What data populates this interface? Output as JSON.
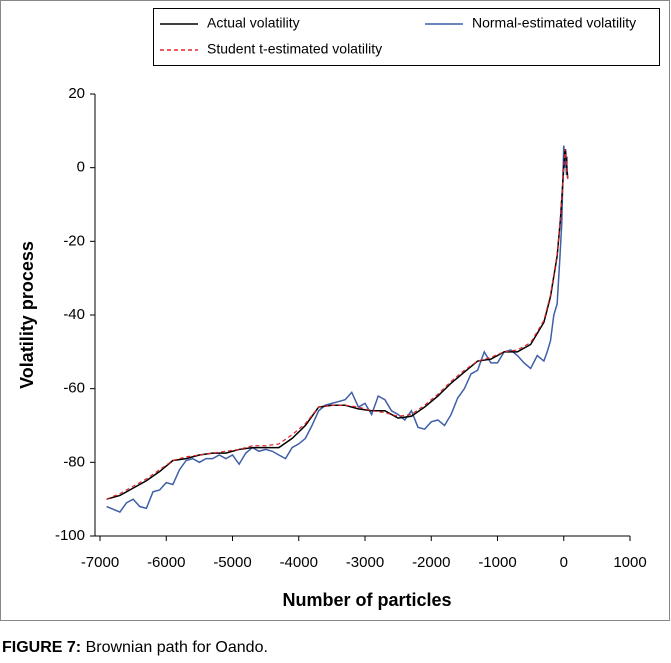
{
  "chart_data": {
    "type": "line",
    "xlabel": "Number of particles",
    "ylabel": "Volatility process",
    "caption": {
      "label": "FIGURE 7:",
      "text": "Brownian path for Oando."
    },
    "xlim": [
      -7000,
      1000
    ],
    "xticks": [
      -7000,
      -6000,
      -5000,
      -4000,
      -3000,
      -2000,
      -1000,
      0,
      1000
    ],
    "ylim": [
      -100,
      20
    ],
    "yticks": [
      -100,
      -80,
      -60,
      -40,
      -20,
      0,
      20
    ],
    "grid": false,
    "series": [
      {
        "name": "Actual volatility",
        "color": "#000000",
        "dash": "solid",
        "x": [
          -6900,
          -6700,
          -6500,
          -6300,
          -6100,
          -5900,
          -5700,
          -5500,
          -5300,
          -5100,
          -4900,
          -4700,
          -4500,
          -4300,
          -4100,
          -3900,
          -3700,
          -3500,
          -3300,
          -3100,
          -2900,
          -2700,
          -2500,
          -2300,
          -2100,
          -1900,
          -1700,
          -1500,
          -1300,
          -1100,
          -900,
          -700,
          -500,
          -300,
          -200,
          -100,
          -50,
          0,
          20,
          40,
          60
        ],
        "values": [
          -90,
          -89,
          -87,
          -85,
          -82.5,
          -79.5,
          -79,
          -78,
          -77.5,
          -77.5,
          -76.5,
          -76,
          -76,
          -76,
          -73.5,
          -70,
          -65,
          -64.5,
          -64.5,
          -65.5,
          -66,
          -66,
          -68,
          -67.5,
          -65,
          -62,
          -58.5,
          -55.5,
          -52.5,
          -52,
          -50,
          -50,
          -48,
          -42,
          -35,
          -24,
          -14,
          0,
          5,
          2,
          -3
        ]
      },
      {
        "name": "Normal-estimated volatility",
        "color": "#3f5fa8",
        "dash": "solid",
        "x": [
          -6900,
          -6700,
          -6600,
          -6500,
          -6400,
          -6300,
          -6200,
          -6100,
          -6000,
          -5900,
          -5800,
          -5700,
          -5600,
          -5500,
          -5400,
          -5300,
          -5200,
          -5100,
          -5000,
          -4900,
          -4800,
          -4700,
          -4600,
          -4500,
          -4400,
          -4300,
          -4200,
          -4100,
          -4000,
          -3900,
          -3800,
          -3700,
          -3600,
          -3500,
          -3400,
          -3300,
          -3200,
          -3100,
          -3000,
          -2900,
          -2800,
          -2700,
          -2600,
          -2500,
          -2400,
          -2300,
          -2200,
          -2100,
          -2000,
          -1900,
          -1800,
          -1700,
          -1600,
          -1500,
          -1400,
          -1300,
          -1200,
          -1100,
          -1000,
          -900,
          -800,
          -700,
          -600,
          -500,
          -400,
          -300,
          -250,
          -200,
          -150,
          -100,
          -60,
          -30,
          0,
          10,
          20,
          30,
          40,
          50
        ],
        "values": [
          -92,
          -93.5,
          -91,
          -90,
          -92,
          -92.5,
          -88,
          -87.5,
          -85.5,
          -86,
          -82,
          -79.5,
          -79,
          -80,
          -79,
          -79,
          -78,
          -79,
          -78,
          -80.5,
          -77.5,
          -76,
          -77,
          -76.5,
          -77,
          -78,
          -79,
          -76,
          -75,
          -73.5,
          -70,
          -66,
          -64.5,
          -64,
          -63.5,
          -63,
          -61,
          -65,
          -64,
          -67,
          -62,
          -63,
          -66,
          -67,
          -68.5,
          -66,
          -70.5,
          -71,
          -69,
          -68.5,
          -70,
          -67,
          -62.5,
          -60,
          -56,
          -55,
          -50,
          -53,
          -53,
          -50,
          -49.5,
          -51,
          -53,
          -54.5,
          -51,
          -52.5,
          -50,
          -47,
          -40,
          -37,
          -25,
          -15,
          6,
          4,
          0,
          5,
          -2,
          3
        ]
      },
      {
        "name": "Student t-estimated volatility",
        "color": "#e0262b",
        "dash": "dashed",
        "x": [
          -6900,
          -6700,
          -6500,
          -6300,
          -6100,
          -5900,
          -5700,
          -5500,
          -5300,
          -5100,
          -4900,
          -4700,
          -4500,
          -4300,
          -4100,
          -3900,
          -3700,
          -3500,
          -3300,
          -3100,
          -2900,
          -2700,
          -2500,
          -2300,
          -2100,
          -1900,
          -1700,
          -1500,
          -1300,
          -1100,
          -900,
          -700,
          -500,
          -300,
          -200,
          -100,
          -50,
          0,
          20,
          40,
          60
        ],
        "values": [
          -90,
          -88.5,
          -86.5,
          -84.5,
          -82,
          -79.5,
          -78.5,
          -78,
          -77.5,
          -77,
          -76.5,
          -75.5,
          -75.5,
          -75,
          -72.5,
          -69.5,
          -65,
          -64.5,
          -64.5,
          -65,
          -66,
          -66.5,
          -67.5,
          -67,
          -64.5,
          -61.5,
          -58,
          -55,
          -52.5,
          -51.5,
          -50,
          -49.5,
          -47.5,
          -41.5,
          -34.5,
          -23.5,
          -13.5,
          0,
          5,
          2,
          -3
        ]
      }
    ]
  }
}
